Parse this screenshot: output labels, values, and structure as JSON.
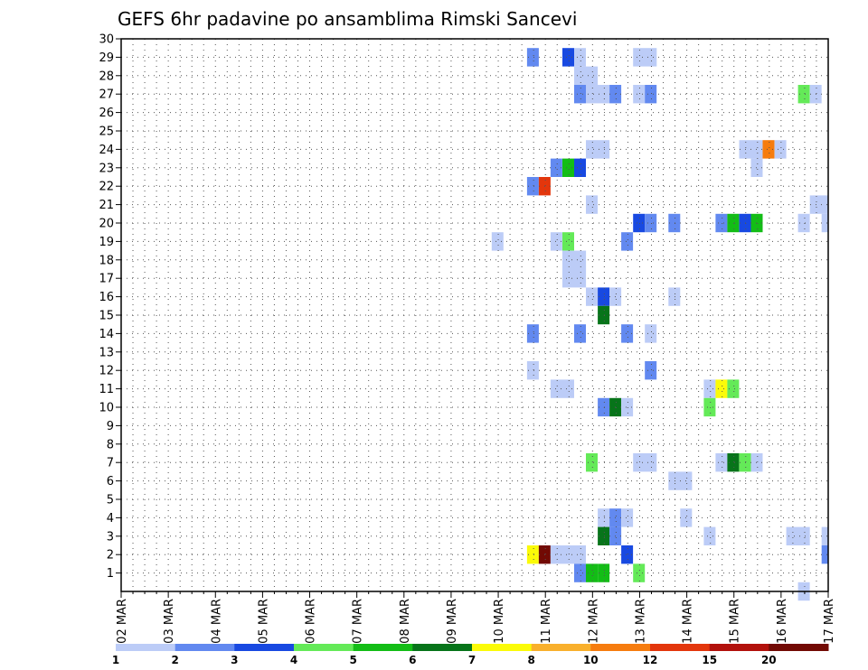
{
  "chart_data": {
    "type": "heatmap",
    "title": "GEFS 6hr padavine po ansamblima Rimski Sancevi",
    "x_tick_labels": [
      "02 MAR",
      "03 MAR",
      "04 MAR",
      "05 MAR",
      "06 MAR",
      "07 MAR",
      "08 MAR",
      "09 MAR",
      "10 MAR",
      "11 MAR",
      "12 MAR",
      "13 MAR",
      "14 MAR",
      "15 MAR",
      "16 MAR",
      "17 MAR"
    ],
    "y_tick_labels": [
      "1",
      "2",
      "3",
      "4",
      "5",
      "6",
      "7",
      "8",
      "9",
      "10",
      "11",
      "12",
      "13",
      "14",
      "15",
      "16",
      "17",
      "18",
      "19",
      "20",
      "21",
      "22",
      "23",
      "24",
      "25",
      "26",
      "27",
      "28",
      "29",
      "30"
    ],
    "x_range_days": [
      2,
      17
    ],
    "y_range": [
      0,
      30
    ],
    "grid": true,
    "legend": {
      "placement": "bottom",
      "bounds": [
        "1",
        "2",
        "3",
        "4",
        "5",
        "6",
        "7",
        "8",
        "10",
        "12",
        "15",
        "20"
      ],
      "colors": [
        "#bcccf7",
        "#6289f0",
        "#1849e1",
        "#64ea58",
        "#13bd16",
        "#07741a",
        "#fbfb08",
        "#f9b02c",
        "#f67c0e",
        "#e3360c",
        "#b2110c",
        "#720a04"
      ]
    },
    "cells_note": "each cell: [member, start_day (fractional March day), end_day, color_class 0-11]",
    "cells": [
      [
        29,
        10.61,
        10.86,
        1
      ],
      [
        29,
        11.36,
        11.61,
        2
      ],
      [
        29,
        11.61,
        11.86,
        0
      ],
      [
        29,
        12.86,
        13.36,
        0
      ],
      [
        28,
        11.61,
        12.11,
        0
      ],
      [
        27,
        11.61,
        11.86,
        1
      ],
      [
        27,
        11.86,
        12.36,
        0
      ],
      [
        27,
        12.36,
        12.61,
        1
      ],
      [
        27,
        12.86,
        13.11,
        0
      ],
      [
        27,
        13.11,
        13.36,
        1
      ],
      [
        27,
        16.36,
        16.61,
        3
      ],
      [
        27,
        16.61,
        16.86,
        0
      ],
      [
        24,
        11.86,
        12.36,
        0
      ],
      [
        24,
        15.11,
        15.61,
        0
      ],
      [
        24,
        15.61,
        15.86,
        8
      ],
      [
        24,
        15.86,
        16.11,
        0
      ],
      [
        23,
        11.11,
        11.36,
        1
      ],
      [
        23,
        11.36,
        11.61,
        4
      ],
      [
        23,
        11.61,
        11.86,
        2
      ],
      [
        23,
        15.36,
        15.61,
        0
      ],
      [
        22,
        10.61,
        10.86,
        1
      ],
      [
        22,
        10.86,
        11.11,
        9
      ],
      [
        21,
        11.86,
        12.11,
        0
      ],
      [
        21,
        16.61,
        17.0,
        0
      ],
      [
        20,
        12.86,
        13.11,
        2
      ],
      [
        20,
        13.11,
        13.36,
        1
      ],
      [
        20,
        13.61,
        13.86,
        1
      ],
      [
        20,
        14.61,
        14.86,
        1
      ],
      [
        20,
        14.86,
        15.11,
        4
      ],
      [
        20,
        15.11,
        15.36,
        2
      ],
      [
        20,
        15.36,
        15.61,
        4
      ],
      [
        20,
        16.36,
        16.61,
        0
      ],
      [
        20,
        16.86,
        17.0,
        0
      ],
      [
        19,
        9.86,
        10.11,
        0
      ],
      [
        19,
        11.11,
        11.36,
        0
      ],
      [
        19,
        11.36,
        11.61,
        3
      ],
      [
        19,
        12.61,
        12.86,
        1
      ],
      [
        18,
        11.36,
        11.86,
        0
      ],
      [
        17,
        11.36,
        11.86,
        0
      ],
      [
        16,
        11.86,
        12.11,
        0
      ],
      [
        16,
        12.11,
        12.36,
        2
      ],
      [
        16,
        12.36,
        12.61,
        0
      ],
      [
        16,
        13.61,
        13.86,
        0
      ],
      [
        15,
        12.11,
        12.36,
        5
      ],
      [
        14,
        10.61,
        10.86,
        1
      ],
      [
        14,
        11.61,
        11.86,
        1
      ],
      [
        14,
        12.61,
        12.86,
        1
      ],
      [
        14,
        13.11,
        13.36,
        0
      ],
      [
        12,
        10.61,
        10.86,
        0
      ],
      [
        12,
        13.11,
        13.36,
        1
      ],
      [
        11,
        11.11,
        11.61,
        0
      ],
      [
        11,
        14.36,
        14.61,
        0
      ],
      [
        11,
        14.61,
        14.86,
        6
      ],
      [
        11,
        14.86,
        15.11,
        3
      ],
      [
        10,
        12.11,
        12.36,
        1
      ],
      [
        10,
        12.36,
        12.61,
        5
      ],
      [
        10,
        12.61,
        12.86,
        0
      ],
      [
        10,
        14.36,
        14.61,
        3
      ],
      [
        7,
        11.86,
        12.11,
        3
      ],
      [
        7,
        12.86,
        13.36,
        0
      ],
      [
        7,
        14.61,
        14.86,
        0
      ],
      [
        7,
        14.86,
        15.11,
        5
      ],
      [
        7,
        15.11,
        15.36,
        3
      ],
      [
        7,
        15.36,
        15.61,
        0
      ],
      [
        6,
        13.61,
        14.11,
        0
      ],
      [
        4,
        12.11,
        12.36,
        0
      ],
      [
        4,
        12.36,
        12.61,
        1
      ],
      [
        4,
        12.61,
        12.86,
        0
      ],
      [
        4,
        13.86,
        14.11,
        0
      ],
      [
        3,
        12.11,
        12.36,
        5
      ],
      [
        3,
        12.36,
        12.61,
        1
      ],
      [
        3,
        14.36,
        14.61,
        0
      ],
      [
        3,
        16.11,
        16.61,
        0
      ],
      [
        3,
        16.86,
        17.0,
        0
      ],
      [
        2,
        10.61,
        10.86,
        6
      ],
      [
        2,
        10.86,
        11.11,
        11
      ],
      [
        2,
        11.11,
        11.86,
        0
      ],
      [
        2,
        12.61,
        12.86,
        2
      ],
      [
        2,
        16.86,
        17.0,
        1
      ],
      [
        1,
        11.61,
        11.86,
        1
      ],
      [
        1,
        11.86,
        12.11,
        4
      ],
      [
        1,
        12.11,
        12.36,
        4
      ],
      [
        1,
        12.86,
        13.11,
        3
      ],
      [
        0,
        16.36,
        16.61,
        0
      ]
    ]
  }
}
